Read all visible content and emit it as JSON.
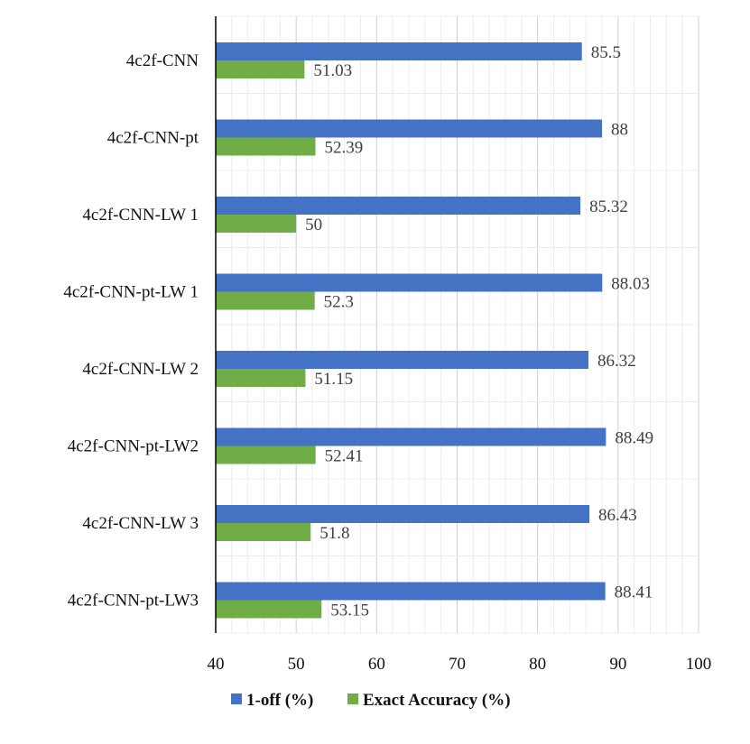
{
  "chart_data": {
    "type": "bar",
    "orientation": "horizontal",
    "categories": [
      "4c2f-CNN",
      "4c2f-CNN-pt",
      "4c2f-CNN-LW 1",
      "4c2f-CNN-pt-LW 1",
      "4c2f-CNN-LW 2",
      "4c2f-CNN-pt-LW2",
      "4c2f-CNN-LW 3",
      "4c2f-CNN-pt-LW3"
    ],
    "series": [
      {
        "name": "1-off (%)",
        "color": "#4472C4",
        "values": [
          85.5,
          88,
          85.32,
          88.03,
          86.32,
          88.49,
          86.43,
          88.41
        ],
        "labels": [
          "85.5",
          "88",
          "85.32",
          "88.03",
          "86.32",
          "88.49",
          "86.43",
          "88.41"
        ]
      },
      {
        "name": "Exact Accuracy (%)",
        "color": "#70AD47",
        "values": [
          51.03,
          52.39,
          50,
          52.3,
          51.15,
          52.41,
          51.8,
          53.15
        ],
        "labels": [
          "51.03",
          "52.39",
          "50",
          "52.3",
          "51.15",
          "52.41",
          "51.8",
          "53.15"
        ]
      }
    ],
    "xlim": [
      40,
      100
    ],
    "xticks": [
      "40",
      "50",
      "60",
      "70",
      "80",
      "90",
      "100"
    ],
    "title": "",
    "xlabel": "",
    "ylabel": "",
    "grid": true,
    "legend": "bottom"
  }
}
